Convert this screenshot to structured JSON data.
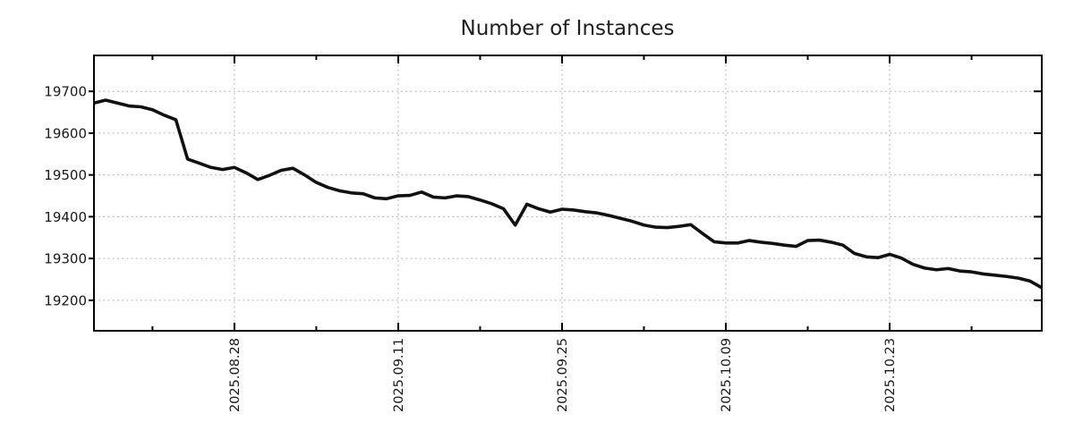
{
  "chart_data": {
    "type": "line",
    "title": "Number of Instances",
    "xlabel": "",
    "ylabel": "",
    "legend": "none",
    "grid": "dashed-major-both-axes",
    "line_color": "#111111",
    "grid_color": "#b0b0b0",
    "axis_color": "#000000",
    "label_color": "#1a1a1a",
    "background_color": "#ffffff",
    "ylim": [
      19127,
      19786
    ],
    "y_ticks": [
      19200,
      19300,
      19400,
      19500,
      19600,
      19700
    ],
    "x_major_ticks": [
      {
        "index": 12,
        "label": "2025.08.28"
      },
      {
        "index": 26,
        "label": "2025.09.11"
      },
      {
        "index": 40,
        "label": "2025.09.25"
      },
      {
        "index": 54,
        "label": "2025.10.09"
      },
      {
        "index": 68,
        "label": "2025.10.23"
      }
    ],
    "x_minor_tick_indices": [
      5,
      19,
      33,
      47,
      61,
      75
    ],
    "x": [
      "2025.08.16",
      "2025.08.17",
      "2025.08.18",
      "2025.08.19",
      "2025.08.20",
      "2025.08.21",
      "2025.08.22",
      "2025.08.23",
      "2025.08.24",
      "2025.08.25",
      "2025.08.26",
      "2025.08.27",
      "2025.08.28",
      "2025.08.29",
      "2025.08.30",
      "2025.08.31",
      "2025.09.01",
      "2025.09.02",
      "2025.09.03",
      "2025.09.04",
      "2025.09.05",
      "2025.09.06",
      "2025.09.07",
      "2025.09.08",
      "2025.09.09",
      "2025.09.10",
      "2025.09.11",
      "2025.09.12",
      "2025.09.13",
      "2025.09.14",
      "2025.09.15",
      "2025.09.16",
      "2025.09.17",
      "2025.09.18",
      "2025.09.19",
      "2025.09.20",
      "2025.09.21",
      "2025.09.22",
      "2025.09.23",
      "2025.09.24",
      "2025.09.25",
      "2025.09.26",
      "2025.09.27",
      "2025.09.28",
      "2025.09.29",
      "2025.09.30",
      "2025.10.01",
      "2025.10.02",
      "2025.10.03",
      "2025.10.04",
      "2025.10.05",
      "2025.10.06",
      "2025.10.07",
      "2025.10.08",
      "2025.10.09",
      "2025.10.10",
      "2025.10.11",
      "2025.10.12",
      "2025.10.13",
      "2025.10.14",
      "2025.10.15",
      "2025.10.16",
      "2025.10.17",
      "2025.10.18",
      "2025.10.19",
      "2025.10.20",
      "2025.10.21",
      "2025.10.22",
      "2025.10.23",
      "2025.10.24",
      "2025.10.25",
      "2025.10.26",
      "2025.10.27",
      "2025.10.28",
      "2025.10.29",
      "2025.10.30",
      "2025.10.31",
      "2025.11.01",
      "2025.11.02",
      "2025.11.03",
      "2025.11.04",
      "2025.11.05"
    ],
    "values": [
      19672,
      19679,
      19672,
      19665,
      19663,
      19656,
      19643,
      19632,
      19538,
      19528,
      19518,
      19513,
      19518,
      19505,
      19489,
      19499,
      19511,
      19516,
      19500,
      19482,
      19470,
      19462,
      19457,
      19455,
      19445,
      19443,
      19450,
      19451,
      19459,
      19447,
      19445,
      19450,
      19448,
      19440,
      19431,
      19419,
      19380,
      19430,
      19419,
      19411,
      19418,
      19416,
      19412,
      19409,
      19403,
      19396,
      19389,
      19380,
      19375,
      19374,
      19377,
      19381,
      19360,
      19340,
      19337,
      19337,
      19343,
      19339,
      19336,
      19332,
      19329,
      19343,
      19344,
      19339,
      19332,
      19312,
      19304,
      19302,
      19310,
      19301,
      19286,
      19277,
      19273,
      19276,
      19270,
      19268,
      19263,
      19260,
      19257,
      19253,
      19246,
      19230
    ]
  }
}
